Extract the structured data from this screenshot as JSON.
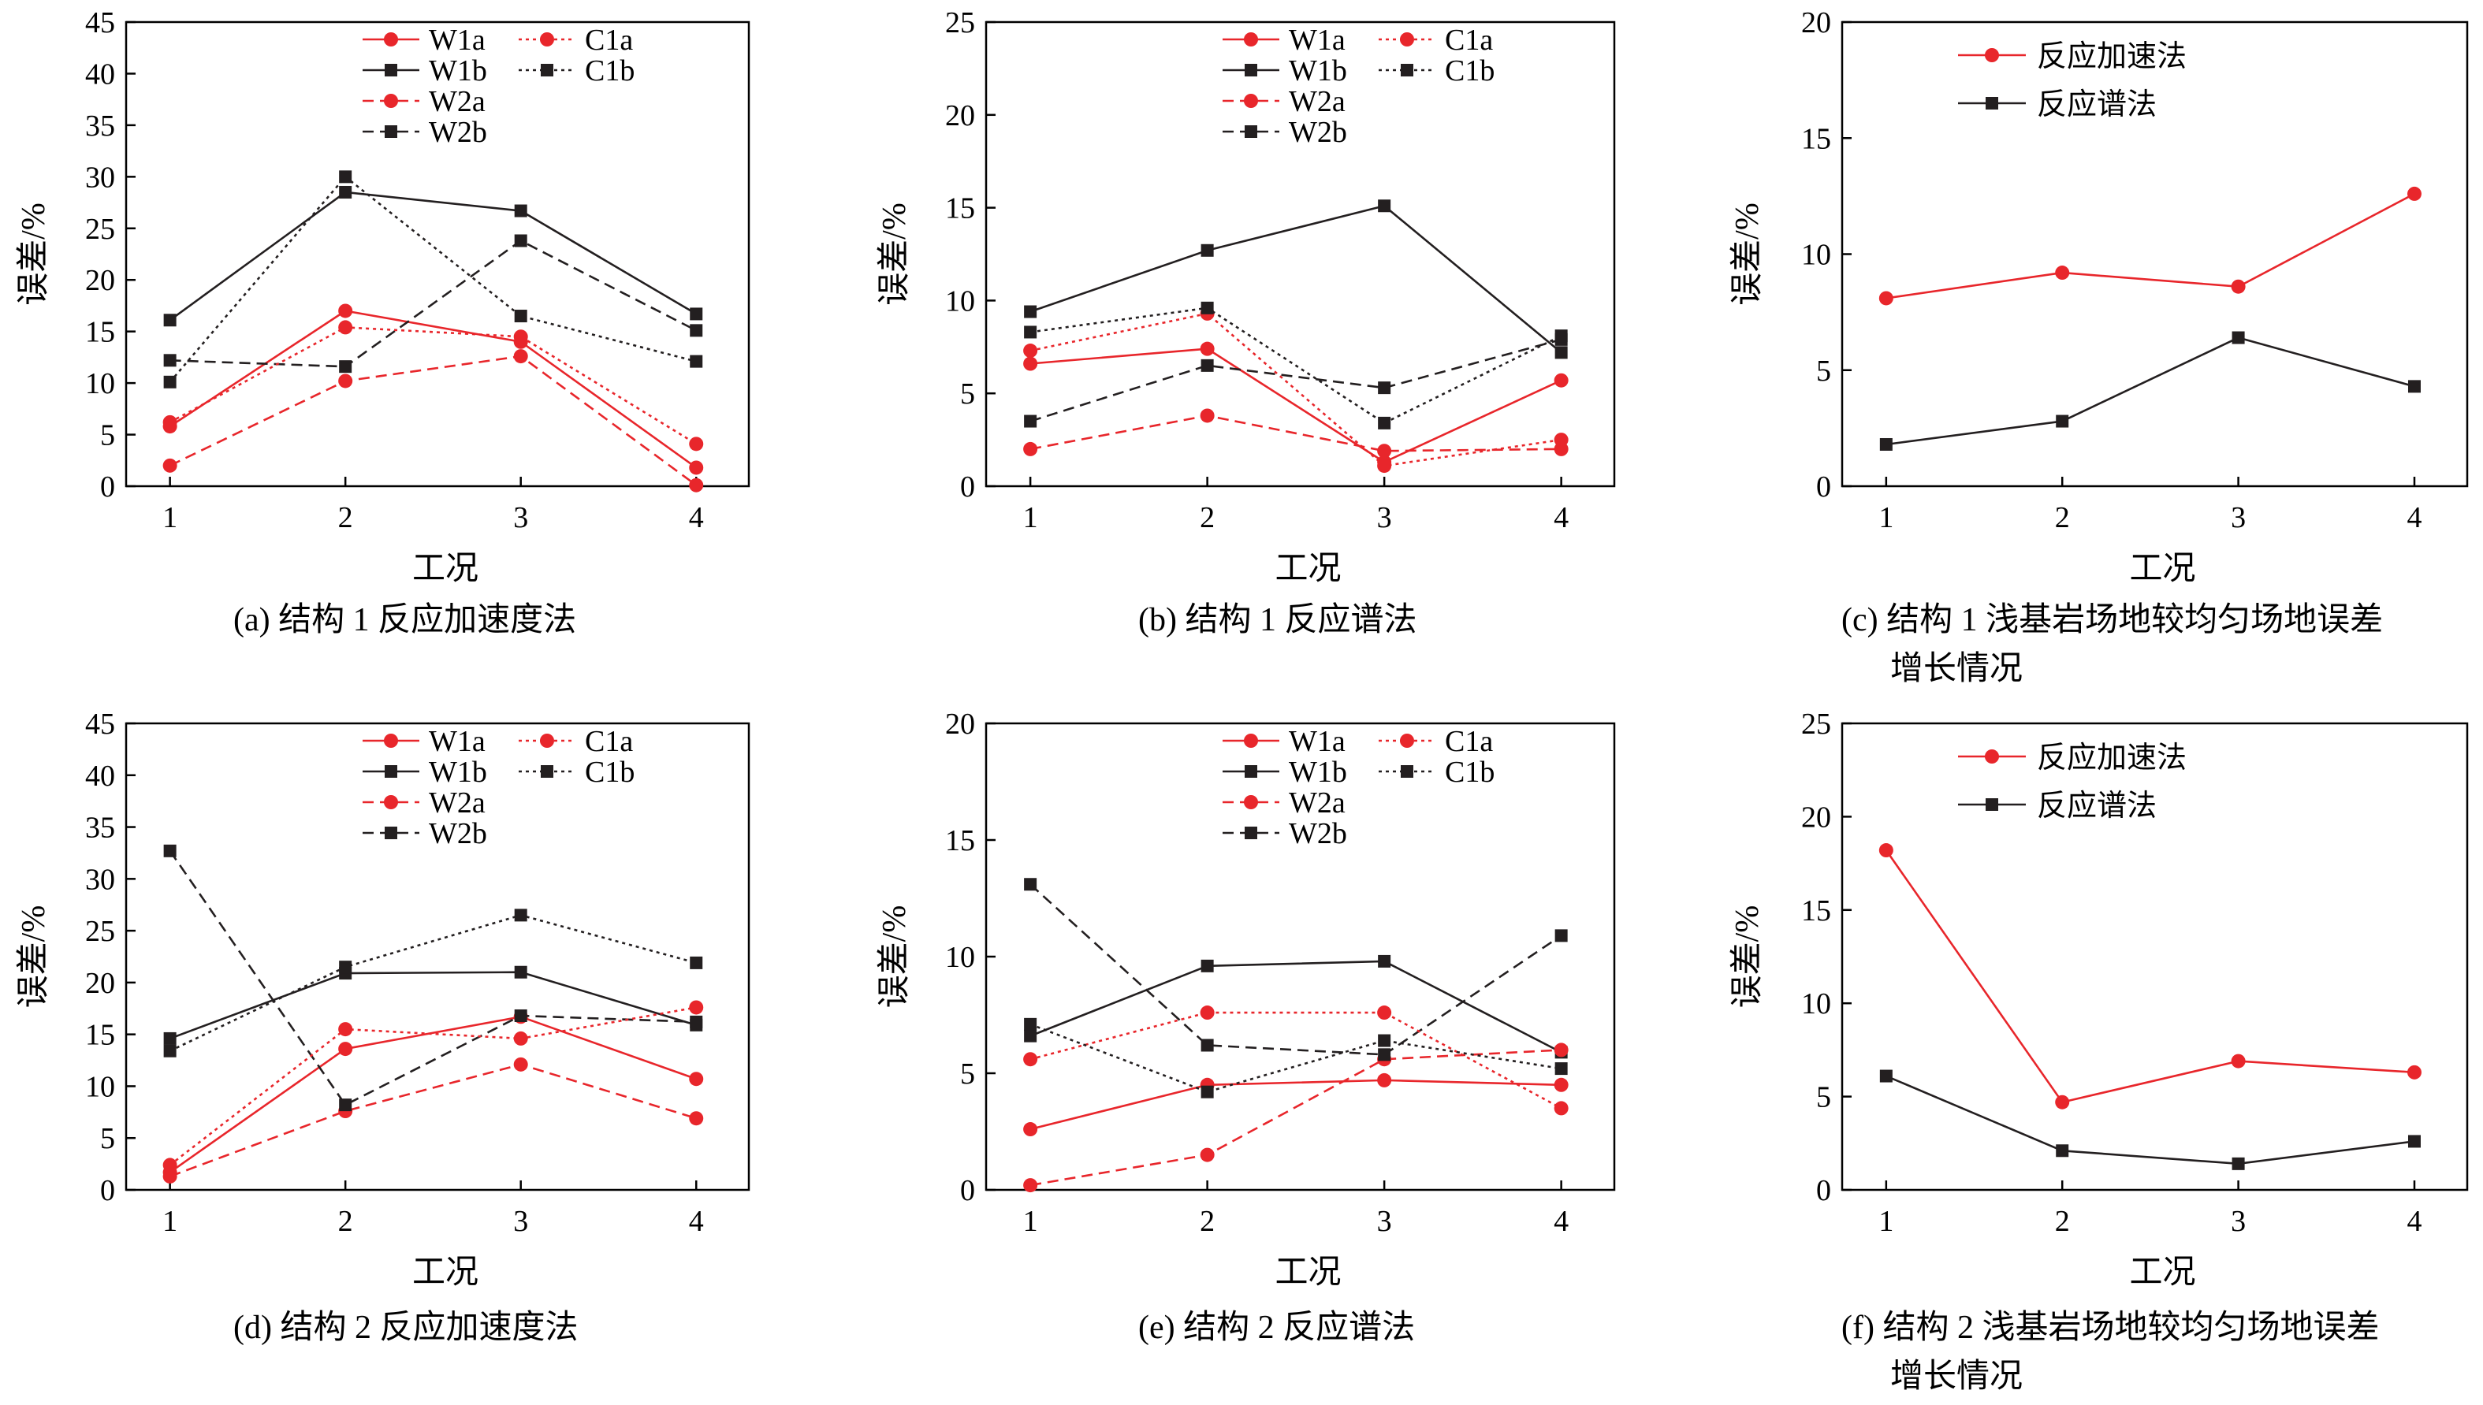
{
  "colors": {
    "red": "#e8262b",
    "black": "#231f20"
  },
  "chart_data": [
    {
      "type": "line",
      "caption": "(a) 结构 1 反应加速度法",
      "xlabel": "工况",
      "ylabel": "误差/%",
      "x": [
        1,
        2,
        3,
        4
      ],
      "xlim": [
        0.75,
        4.3
      ],
      "ylim": [
        0,
        45
      ],
      "yticks": [
        0,
        5,
        10,
        15,
        20,
        25,
        30,
        35,
        40,
        45
      ],
      "legend_position": "top-center",
      "series": [
        {
          "name": "W1a",
          "color": "red",
          "style": "solid",
          "marker": "circle",
          "values": [
            5.8,
            17.0,
            14.0,
            1.8
          ]
        },
        {
          "name": "W1b",
          "color": "black",
          "style": "solid",
          "marker": "square",
          "values": [
            16.1,
            28.5,
            26.7,
            16.7
          ]
        },
        {
          "name": "W2a",
          "color": "red",
          "style": "dashed",
          "marker": "circle",
          "values": [
            2.0,
            10.2,
            12.6,
            0.1
          ]
        },
        {
          "name": "W2b",
          "color": "black",
          "style": "dashed",
          "marker": "square",
          "values": [
            12.2,
            11.6,
            23.8,
            15.1
          ]
        },
        {
          "name": "C1a",
          "color": "red",
          "style": "dotted",
          "marker": "circle",
          "values": [
            6.2,
            15.4,
            14.5,
            4.1
          ]
        },
        {
          "name": "C1b",
          "color": "black",
          "style": "dotted",
          "marker": "square",
          "values": [
            10.1,
            30.0,
            16.5,
            12.1
          ]
        }
      ]
    },
    {
      "type": "line",
      "caption": "(b) 结构 1 反应谱法",
      "xlabel": "工况",
      "ylabel": "误差/%",
      "x": [
        1,
        2,
        3,
        4
      ],
      "xlim": [
        0.75,
        4.3
      ],
      "ylim": [
        0,
        25
      ],
      "yticks": [
        0,
        5,
        10,
        15,
        20,
        25
      ],
      "legend_position": "top-center",
      "series": [
        {
          "name": "W1a",
          "color": "red",
          "style": "solid",
          "marker": "circle",
          "values": [
            6.6,
            7.4,
            1.3,
            5.7
          ]
        },
        {
          "name": "W1b",
          "color": "black",
          "style": "solid",
          "marker": "square",
          "values": [
            9.4,
            12.7,
            15.1,
            7.2
          ]
        },
        {
          "name": "W2a",
          "color": "red",
          "style": "dashed",
          "marker": "circle",
          "values": [
            2.0,
            3.8,
            1.9,
            2.0
          ]
        },
        {
          "name": "W2b",
          "color": "black",
          "style": "dashed",
          "marker": "square",
          "values": [
            3.5,
            6.5,
            5.3,
            7.9
          ]
        },
        {
          "name": "C1a",
          "color": "red",
          "style": "dotted",
          "marker": "circle",
          "values": [
            7.3,
            9.3,
            1.1,
            2.5
          ]
        },
        {
          "name": "C1b",
          "color": "black",
          "style": "dotted",
          "marker": "square",
          "values": [
            8.3,
            9.6,
            3.4,
            8.1
          ]
        }
      ]
    },
    {
      "type": "line",
      "caption": "(c) 结构 1 浅基岩场地较均匀场地误差",
      "caption_line2": "增长情况",
      "xlabel": "工况",
      "ylabel": "误差/%",
      "x": [
        1,
        2,
        3,
        4
      ],
      "xlim": [
        0.75,
        4.3
      ],
      "ylim": [
        0,
        20
      ],
      "yticks": [
        0,
        5,
        10,
        15,
        20
      ],
      "legend_position": "top-right",
      "series": [
        {
          "name": "反应加速法",
          "color": "red",
          "style": "solid",
          "marker": "circle",
          "values": [
            8.1,
            9.2,
            8.6,
            12.6
          ]
        },
        {
          "name": "反应谱法",
          "color": "black",
          "style": "solid",
          "marker": "square",
          "values": [
            1.8,
            2.8,
            6.4,
            4.3
          ]
        }
      ]
    },
    {
      "type": "line",
      "caption": "(d) 结构 2 反应加速度法",
      "xlabel": "工况",
      "ylabel": "误差/%",
      "x": [
        1,
        2,
        3,
        4
      ],
      "xlim": [
        0.75,
        4.3
      ],
      "ylim": [
        0,
        45
      ],
      "yticks": [
        0,
        5,
        10,
        15,
        20,
        25,
        30,
        35,
        40,
        45
      ],
      "legend_position": "top-center",
      "series": [
        {
          "name": "W1a",
          "color": "red",
          "style": "solid",
          "marker": "circle",
          "values": [
            1.7,
            13.6,
            16.7,
            10.7
          ]
        },
        {
          "name": "W1b",
          "color": "black",
          "style": "solid",
          "marker": "square",
          "values": [
            14.6,
            20.9,
            21.0,
            15.9
          ]
        },
        {
          "name": "W2a",
          "color": "red",
          "style": "dashed",
          "marker": "circle",
          "values": [
            1.3,
            7.6,
            12.1,
            6.9
          ]
        },
        {
          "name": "W2b",
          "color": "black",
          "style": "dashed",
          "marker": "square",
          "values": [
            32.7,
            8.2,
            16.8,
            16.2
          ]
        },
        {
          "name": "C1a",
          "color": "red",
          "style": "dotted",
          "marker": "circle",
          "values": [
            2.4,
            15.5,
            14.6,
            17.6
          ]
        },
        {
          "name": "C1b",
          "color": "black",
          "style": "dotted",
          "marker": "square",
          "values": [
            13.4,
            21.5,
            26.5,
            21.9
          ]
        }
      ]
    },
    {
      "type": "line",
      "caption": "(e) 结构 2 反应谱法",
      "xlabel": "工况",
      "ylabel": "误差/%",
      "x": [
        1,
        2,
        3,
        4
      ],
      "xlim": [
        0.75,
        4.3
      ],
      "ylim": [
        0,
        20
      ],
      "yticks": [
        0,
        5,
        10,
        15,
        20
      ],
      "legend_position": "top-center",
      "series": [
        {
          "name": "W1a",
          "color": "red",
          "style": "solid",
          "marker": "circle",
          "values": [
            2.6,
            4.5,
            4.7,
            4.5
          ]
        },
        {
          "name": "W1b",
          "color": "black",
          "style": "solid",
          "marker": "square",
          "values": [
            6.6,
            9.6,
            9.8,
            5.9
          ]
        },
        {
          "name": "W2a",
          "color": "red",
          "style": "dashed",
          "marker": "circle",
          "values": [
            0.2,
            1.5,
            5.6,
            6.0
          ]
        },
        {
          "name": "W2b",
          "color": "black",
          "style": "dashed",
          "marker": "square",
          "values": [
            13.1,
            6.2,
            5.8,
            10.9
          ]
        },
        {
          "name": "C1a",
          "color": "red",
          "style": "dotted",
          "marker": "circle",
          "values": [
            5.6,
            7.6,
            7.6,
            3.5
          ]
        },
        {
          "name": "C1b",
          "color": "black",
          "style": "dotted",
          "marker": "square",
          "values": [
            7.1,
            4.2,
            6.4,
            5.2
          ]
        }
      ]
    },
    {
      "type": "line",
      "caption": "(f) 结构 2 浅基岩场地较均匀场地误差",
      "caption_line2": "增长情况",
      "xlabel": "工况",
      "ylabel": "误差/%",
      "x": [
        1,
        2,
        3,
        4
      ],
      "xlim": [
        0.75,
        4.3
      ],
      "ylim": [
        0,
        25
      ],
      "yticks": [
        0,
        5,
        10,
        15,
        20,
        25
      ],
      "legend_position": "top-right",
      "series": [
        {
          "name": "反应加速法",
          "color": "red",
          "style": "solid",
          "marker": "circle",
          "values": [
            18.2,
            4.7,
            6.9,
            6.3
          ]
        },
        {
          "name": "反应谱法",
          "color": "black",
          "style": "solid",
          "marker": "square",
          "values": [
            6.1,
            2.1,
            1.4,
            2.6
          ]
        }
      ]
    }
  ]
}
